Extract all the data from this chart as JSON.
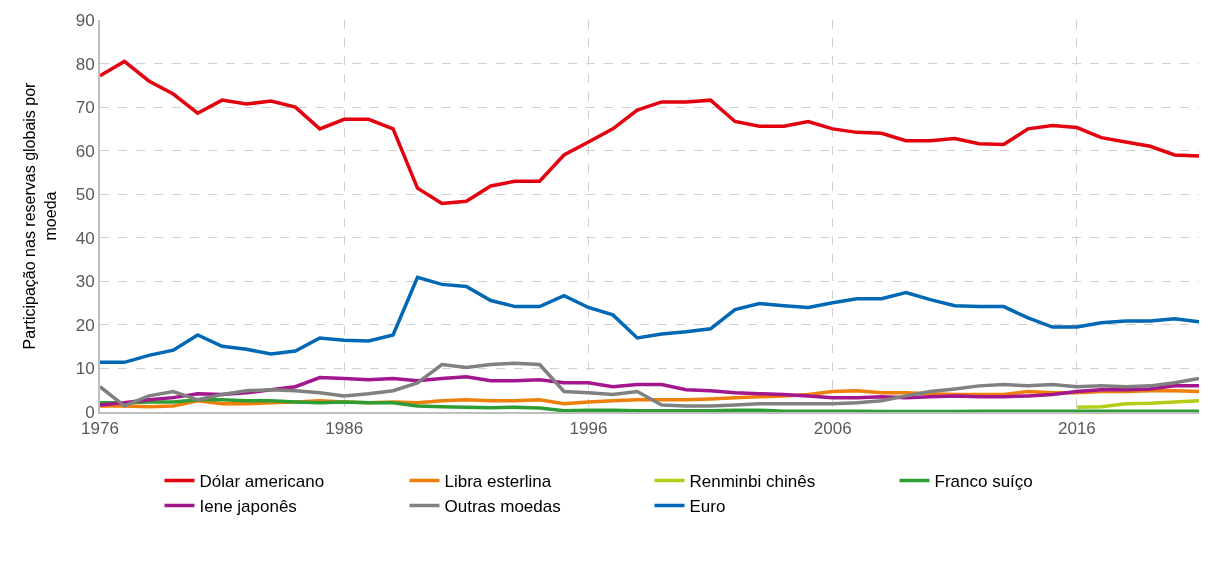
{
  "chart_data": {
    "type": "line",
    "ylabel": "Participação nas reservas globais por moeda",
    "x": [
      1976,
      1977,
      1978,
      1979,
      1980,
      1981,
      1982,
      1983,
      1984,
      1985,
      1986,
      1987,
      1988,
      1989,
      1990,
      1991,
      1992,
      1993,
      1994,
      1995,
      1996,
      1997,
      1998,
      1999,
      2000,
      2001,
      2002,
      2003,
      2004,
      2005,
      2006,
      2007,
      2008,
      2009,
      2010,
      2011,
      2012,
      2013,
      2014,
      2015,
      2016,
      2017,
      2018,
      2019,
      2020,
      2021
    ],
    "xlim": [
      1976,
      2021
    ],
    "xticks": [
      1976,
      1986,
      1996,
      2006,
      2016
    ],
    "ylim": [
      0,
      90
    ],
    "yticks": [
      0,
      10,
      20,
      30,
      40,
      50,
      60,
      70,
      80,
      90
    ],
    "grid": true,
    "legend": "bottom",
    "line_style": "solid",
    "marker": "none",
    "series": [
      {
        "name": "Dólar americano",
        "color": "#e3000f",
        "values": [
          77.2,
          80.5,
          76,
          73,
          68.6,
          71.6,
          70.7,
          71.4,
          70,
          65,
          67.2,
          67.2,
          65,
          51.4,
          47.9,
          48.4,
          51.9,
          53,
          53,
          59,
          62,
          65,
          69.3,
          71.2,
          71.2,
          71.6,
          66.7,
          65.6,
          65.6,
          66.7,
          65,
          64.2,
          64,
          62.3,
          62.3,
          62.8,
          61.6,
          61.4,
          65,
          65.8,
          65.3,
          63,
          62,
          61,
          59,
          58.8
        ]
      },
      {
        "name": "Libra esterlina",
        "color": "#f07f09",
        "values": [
          1.4,
          1.4,
          1.2,
          1.4,
          2.6,
          1.9,
          1.9,
          2.1,
          2.3,
          2.6,
          2.3,
          2.1,
          2.3,
          2.1,
          2.6,
          2.8,
          2.6,
          2.6,
          2.8,
          1.9,
          2.3,
          2.6,
          2.8,
          2.8,
          2.8,
          3,
          3.3,
          3.5,
          3.7,
          4,
          4.7,
          4.9,
          4.4,
          4.4,
          4.2,
          4,
          4,
          4,
          4.7,
          4.4,
          4.4,
          4.7,
          4.7,
          4.9,
          4.9,
          4.7
        ]
      },
      {
        "name": "Renminbi chinês",
        "color": "#b5cc18",
        "values": [
          null,
          null,
          null,
          null,
          null,
          null,
          null,
          null,
          null,
          null,
          null,
          null,
          null,
          null,
          null,
          null,
          null,
          null,
          null,
          null,
          null,
          null,
          null,
          null,
          null,
          null,
          null,
          null,
          null,
          null,
          null,
          null,
          null,
          null,
          null,
          null,
          null,
          null,
          null,
          null,
          1.1,
          1.2,
          1.9,
          2.0,
          2.3,
          2.6
        ]
      },
      {
        "name": "Franco suíço",
        "color": "#2e9e34",
        "values": [
          2.1,
          2.1,
          2.3,
          2.3,
          2.8,
          2.8,
          2.6,
          2.6,
          2.3,
          2.1,
          2.3,
          2.1,
          2.1,
          1.4,
          1.2,
          1.1,
          1.0,
          1.1,
          0.9,
          0.3,
          0.4,
          0.4,
          0.3,
          0.3,
          0.3,
          0.3,
          0.4,
          0.4,
          0.2,
          0.2,
          0.2,
          0.2,
          0.1,
          0.1,
          0.1,
          0.1,
          0.2,
          0.2,
          0.2,
          0.2,
          0.2,
          0.2,
          0.2,
          0.2,
          0.2,
          0.2
        ]
      },
      {
        "name": "Iene japonês",
        "color": "#a3168e",
        "values": [
          1.6,
          2.1,
          2.8,
          3.3,
          4.2,
          4,
          4.4,
          5.1,
          5.8,
          7.9,
          7.7,
          7.4,
          7.7,
          7.2,
          7.7,
          8.1,
          7.2,
          7.2,
          7.4,
          6.7,
          6.7,
          5.8,
          6.3,
          6.3,
          5.1,
          4.9,
          4.4,
          4.2,
          4,
          3.7,
          3.3,
          3.3,
          3.5,
          3.3,
          3.5,
          3.7,
          3.5,
          3.5,
          3.7,
          4,
          4.7,
          5.1,
          5.1,
          5.3,
          6,
          6
        ]
      },
      {
        "name": "Outras moedas",
        "color": "#808080",
        "values": [
          5.8,
          1.4,
          3.7,
          4.7,
          2.8,
          4,
          4.9,
          5.1,
          4.9,
          4.4,
          3.7,
          4.2,
          4.9,
          6.7,
          10.9,
          10.2,
          10.9,
          11.2,
          10.9,
          4.7,
          4.4,
          4,
          4.7,
          1.6,
          1.4,
          1.4,
          1.6,
          1.9,
          1.9,
          1.9,
          1.9,
          2.1,
          2.6,
          3.7,
          4.7,
          5.3,
          6,
          6.3,
          6,
          6.3,
          5.8,
          6,
          5.8,
          6,
          6.7,
          7.7
        ]
      },
      {
        "name": "Euro",
        "color": "#0068b4",
        "values": [
          11.4,
          11.4,
          13,
          14.2,
          17.7,
          15.1,
          14.4,
          13.3,
          14,
          17,
          16.5,
          16.3,
          17.7,
          30.9,
          29.3,
          28.8,
          25.6,
          24.2,
          24.2,
          26.7,
          24,
          22.3,
          17,
          17.9,
          18.4,
          19.1,
          23.5,
          24.9,
          24.4,
          24,
          25.1,
          26,
          26,
          27.4,
          25.8,
          24.4,
          24.2,
          24.2,
          21.6,
          19.5,
          19.5,
          20.5,
          20.9,
          20.9,
          21.4,
          20.7
        ]
      }
    ]
  }
}
